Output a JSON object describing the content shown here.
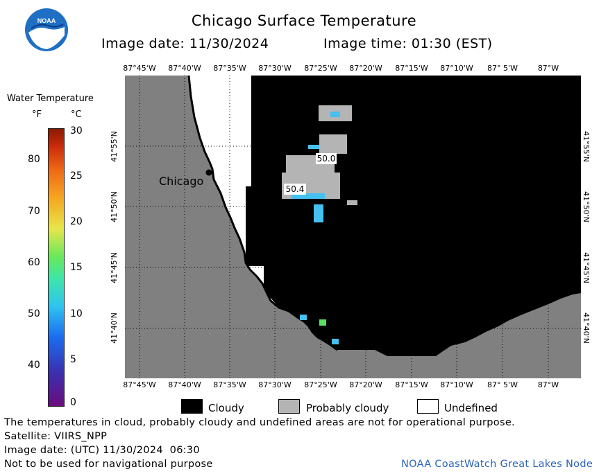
{
  "header": {
    "title": "Chicago Surface Temperature",
    "image_date": "Image date: 11/30/2024",
    "image_time": "Image time: 01:30 (EST)"
  },
  "logo": {
    "text": "NOAA",
    "colors": {
      "outer": "#1f6fc4",
      "inner": "#ffffff",
      "bird": "#0a3c86"
    }
  },
  "color_scale": {
    "title": "Water Temperature",
    "unit_f": "°F",
    "unit_c": "°C",
    "fahrenheit_ticks": [
      "80",
      "70",
      "60",
      "50",
      "40"
    ],
    "celsius_ticks": [
      "30",
      "25",
      "20",
      "15",
      "10",
      "5",
      "0"
    ],
    "gradient": [
      "#6b0c7d",
      "#3b2fb0",
      "#1a6ef0",
      "#2fc4f0",
      "#3ee6a8",
      "#6ae85a",
      "#e7e64a",
      "#f5a622",
      "#f06a15",
      "#c72a0a",
      "#8b1a00"
    ]
  },
  "map": {
    "longitude_labels": [
      "87°45'W",
      "87°40'W",
      "87°35'W",
      "87°30'W",
      "87°25'W",
      "87°20'W",
      "87°15'W",
      "87°10'W",
      "87° 5'W",
      "87°W"
    ],
    "latitude_labels": [
      "41°55'N",
      "41°50'N",
      "41°45'N",
      "41°40'N"
    ],
    "city_label": "Chicago",
    "temperature_labels": [
      "50.0",
      "50.4"
    ],
    "colors": {
      "land": "#808080",
      "cloudy": "#000000",
      "probably_cloudy": "#b4b4b4",
      "undefined": "#ffffff",
      "water_cool": "#45c0ef",
      "water_green": "#5ae060"
    }
  },
  "legend": {
    "cloudy": "Cloudy",
    "probably_cloudy": "Probably cloudy",
    "undefined": "Undefined"
  },
  "footer": {
    "disclaimer": "The temperatures in cloud, probably cloudy and undefined areas are not for operational purpose.",
    "satellite": "Satellite: VIIRS_NPP",
    "utc_date": "Image date: (UTC) 11/30/2024  06:30",
    "nav_warning": "Not to be used for navigational purpose",
    "credit": "NOAA CoastWatch Great Lakes Node"
  }
}
